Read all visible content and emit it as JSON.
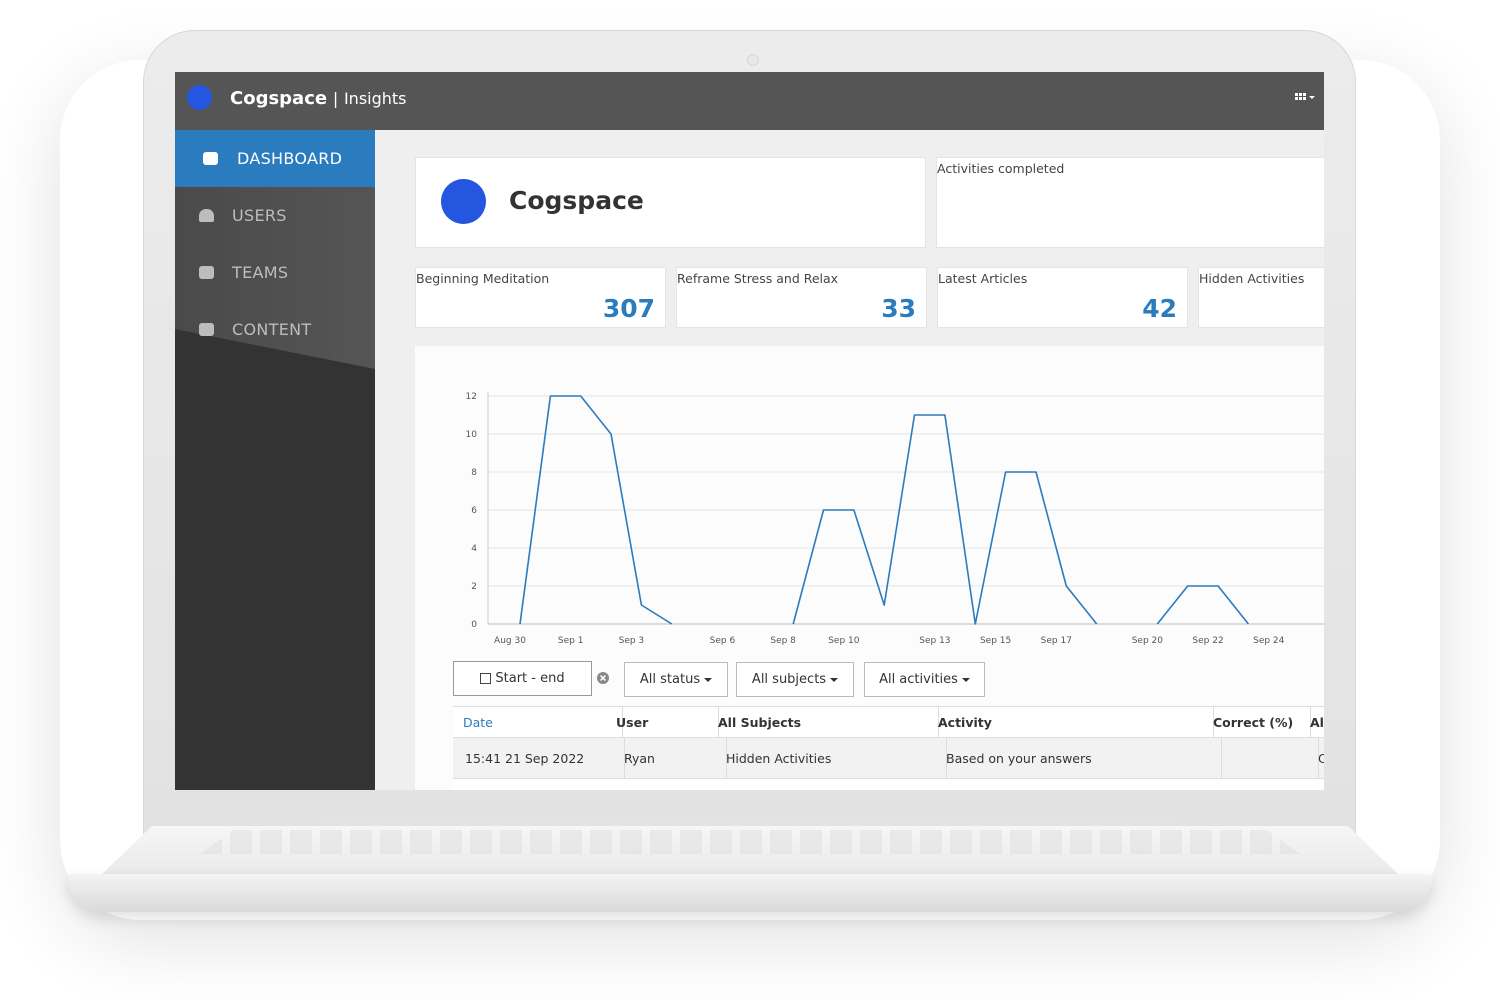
{
  "header": {
    "brand": "Cogspace",
    "separator": "|",
    "product": "Insights"
  },
  "nav": [
    "DASHBOARD",
    "USERS",
    "TEAMS",
    "CONTENT"
  ],
  "org_card": {
    "name": "Cogspace"
  },
  "activities_card": {
    "title": "Activities completed"
  },
  "stats": [
    {
      "label": "Beginning Meditation",
      "value": 307
    },
    {
      "label": "Reframe Stress and Relax",
      "value": 33
    },
    {
      "label": "Latest Articles",
      "value": 42
    },
    {
      "label": "Hidden Activities"
    }
  ],
  "chart_data": {
    "type": "line",
    "categories": [
      "Aug 30",
      null,
      "Sep 1",
      null,
      "Sep 3",
      null,
      null,
      "Sep 6",
      null,
      "Sep 8",
      null,
      "Sep 10",
      null,
      null,
      "Sep 13",
      null,
      "Sep 15",
      null,
      "Sep 17",
      null,
      null,
      "Sep 20",
      null,
      "Sep 22",
      null,
      "Sep 24",
      null
    ],
    "values": [
      0,
      12,
      12,
      10,
      1,
      0,
      null,
      null,
      null,
      0,
      6,
      6,
      1,
      11,
      11,
      0,
      8,
      8,
      2,
      0,
      null,
      0,
      2,
      2,
      0,
      null,
      null
    ],
    "color": "#2b7bbf",
    "ylim": [
      0,
      12
    ],
    "yticks": [
      0,
      2,
      4,
      6,
      8,
      10,
      12
    ],
    "grid": true
  },
  "filters": [
    "Start - end",
    "All status",
    "All subjects",
    "All activities"
  ],
  "table": {
    "columns": [
      "Date",
      "User",
      "All Subjects",
      "Activity",
      "Correct (%)",
      "Al"
    ],
    "rows": [
      {
        "date": "15:41 21 Sep 2022",
        "user": "Ryan",
        "subject": "Hidden Activities",
        "activity": "Based on your answers",
        "last": "C"
      }
    ]
  }
}
